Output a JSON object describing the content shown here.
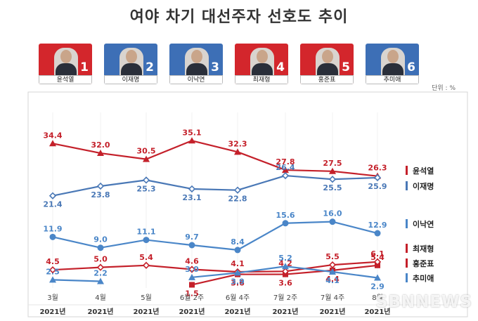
{
  "title": "여야 차기 대선주자 선호도 추이",
  "unit": "단위 : %",
  "watermark": "SBNNEWS",
  "candidates": [
    {
      "num": "1",
      "name": "윤석열",
      "color": "#d3262c"
    },
    {
      "num": "2",
      "name": "이재명",
      "color": "#3d6fb6"
    },
    {
      "num": "3",
      "name": "이낙연",
      "color": "#3d6fb6"
    },
    {
      "num": "4",
      "name": "최재형",
      "color": "#d3262c"
    },
    {
      "num": "5",
      "name": "홍준표",
      "color": "#d3262c"
    },
    {
      "num": "6",
      "name": "추미애",
      "color": "#3d6fb6"
    }
  ],
  "chart_data": {
    "type": "line",
    "categories": [
      "3월",
      "4월",
      "5월",
      "6월 2주",
      "6월 4주",
      "7월 2주",
      "7월 4주",
      "8월"
    ],
    "year_labels": [
      "2021년",
      "2021년",
      "2021년",
      "2021년",
      "2021년",
      "2021년",
      "2021년",
      "2021년"
    ],
    "panels": [
      {
        "series": [
          {
            "name": "윤석열",
            "color": "#c4202a",
            "marker": "triangle",
            "values": [
              34.4,
              32.0,
              30.5,
              35.1,
              32.3,
              27.8,
              27.5,
              26.3
            ]
          },
          {
            "name": "이재명",
            "color": "#4a78b6",
            "marker": "diamond",
            "values": [
              21.4,
              23.8,
              25.3,
              23.1,
              22.8,
              26.4,
              25.5,
              25.9
            ]
          }
        ]
      },
      {
        "series": [
          {
            "name": "이낙연",
            "color": "#4a86c8",
            "marker": "circle",
            "values": [
              11.9,
              9.0,
              11.1,
              9.7,
              8.4,
              15.6,
              16.0,
              12.9
            ]
          }
        ]
      },
      {
        "series": [
          {
            "name": "최재형",
            "color": "#c4202a",
            "marker": "square",
            "values": [
              null,
              null,
              null,
              1.5,
              3.6,
              3.6,
              4.4,
              5.4
            ]
          },
          {
            "name": "홍준표",
            "color": "#c4202a",
            "marker": "diamond",
            "values": [
              4.5,
              5.0,
              5.4,
              4.6,
              4.1,
              4.2,
              5.5,
              6.1
            ]
          },
          {
            "name": "추미애",
            "color": "#4a86c8",
            "marker": "triangle",
            "values": [
              2.5,
              2.2,
              null,
              3.0,
              3.9,
              5.2,
              4.1,
              2.9
            ]
          }
        ]
      }
    ]
  }
}
